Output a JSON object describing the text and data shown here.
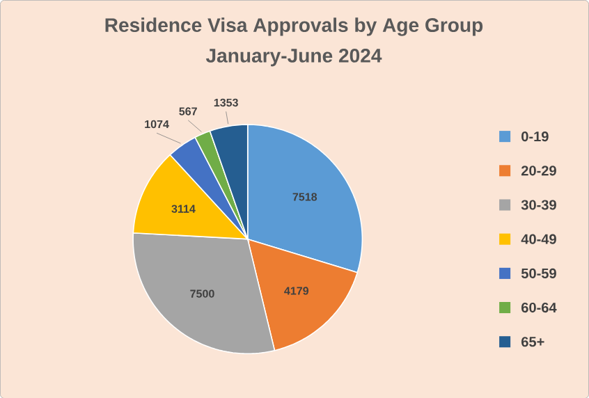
{
  "chart_data": {
    "type": "pie",
    "title": "Residence Visa Approvals by Age Group",
    "subtitle": "January-June 2024",
    "categories": [
      "0-19",
      "20-29",
      "30-39",
      "40-49",
      "50-59",
      "60-64",
      "65+"
    ],
    "values": [
      7518,
      4179,
      7500,
      3114,
      1074,
      567,
      1353
    ],
    "colors": [
      "#5b9bd5",
      "#ed7d31",
      "#a5a5a5",
      "#ffc000",
      "#4472c4",
      "#70ad47",
      "#255e91"
    ],
    "data_labels": true,
    "legend": "right"
  }
}
